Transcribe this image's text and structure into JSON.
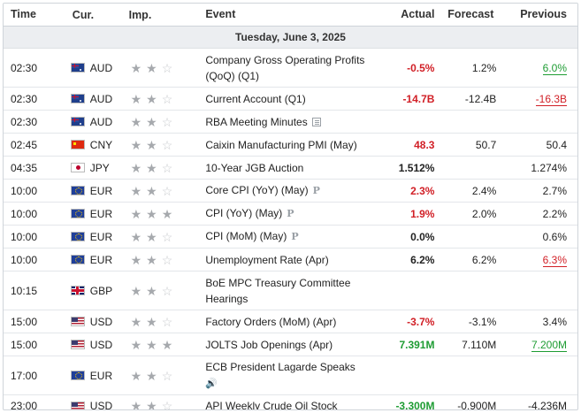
{
  "headers": {
    "time": "Time",
    "cur": "Cur.",
    "imp": "Imp.",
    "event": "Event",
    "actual": "Actual",
    "forecast": "Forecast",
    "previous": "Previous"
  },
  "date_label": "Tuesday, June 3, 2025",
  "icons": {
    "preliminary": "P",
    "speaker": "🔊"
  },
  "colors": {
    "negative": "#d11f26",
    "positive": "#1e9c33",
    "star_on": "#a6a9ad",
    "star_off": "#c8cacd"
  },
  "rows": [
    {
      "time": "02:30",
      "cur": "AUD",
      "imp": 2,
      "event": "Company Gross Operating Profits (QoQ) (Q1)",
      "icon": "",
      "actual": "-0.5%",
      "actual_color": "neg",
      "forecast": "1.2%",
      "previous": "6.0%",
      "prev_color": "pos",
      "prev_und": true,
      "h": 44
    },
    {
      "time": "02:30",
      "cur": "AUD",
      "imp": 2,
      "event": "Current Account (Q1)",
      "icon": "",
      "actual": "-14.7B",
      "actual_color": "neg",
      "forecast": "-12.4B",
      "previous": "-16.3B",
      "prev_color": "neg",
      "prev_und": true,
      "h": 26
    },
    {
      "time": "02:30",
      "cur": "AUD",
      "imp": 2,
      "event": "RBA Meeting Minutes",
      "icon": "doc",
      "actual": "",
      "actual_color": "blk",
      "forecast": "",
      "previous": "",
      "prev_color": "blk",
      "prev_und": false,
      "h": 26
    },
    {
      "time": "02:45",
      "cur": "CNY",
      "imp": 2,
      "event": "Caixin Manufacturing PMI (May)",
      "icon": "",
      "actual": "48.3",
      "actual_color": "neg",
      "forecast": "50.7",
      "previous": "50.4",
      "prev_color": "blk",
      "prev_und": false,
      "h": 26
    },
    {
      "time": "04:35",
      "cur": "JPY",
      "imp": 2,
      "event": "10-Year JGB Auction",
      "icon": "",
      "actual": "1.512%",
      "actual_color": "blk",
      "forecast": "",
      "previous": "1.274%",
      "prev_color": "blk",
      "prev_und": false,
      "h": 26
    },
    {
      "time": "10:00",
      "cur": "EUR",
      "imp": 2,
      "event": "Core CPI (YoY) (May)",
      "icon": "p",
      "actual": "2.3%",
      "actual_color": "neg",
      "forecast": "2.4%",
      "previous": "2.7%",
      "prev_color": "blk",
      "prev_und": false,
      "h": 26
    },
    {
      "time": "10:00",
      "cur": "EUR",
      "imp": 3,
      "event": "CPI (YoY) (May)",
      "icon": "p",
      "actual": "1.9%",
      "actual_color": "neg",
      "forecast": "2.0%",
      "previous": "2.2%",
      "prev_color": "blk",
      "prev_und": false,
      "h": 26
    },
    {
      "time": "10:00",
      "cur": "EUR",
      "imp": 2,
      "event": "CPI (MoM) (May)",
      "icon": "p",
      "actual": "0.0%",
      "actual_color": "blk",
      "forecast": "",
      "previous": "0.6%",
      "prev_color": "blk",
      "prev_und": false,
      "h": 26
    },
    {
      "time": "10:00",
      "cur": "EUR",
      "imp": 2,
      "event": "Unemployment Rate (Apr)",
      "icon": "",
      "actual": "6.2%",
      "actual_color": "blk",
      "forecast": "6.2%",
      "previous": "6.3%",
      "prev_color": "neg",
      "prev_und": true,
      "h": 26
    },
    {
      "time": "10:15",
      "cur": "GBP",
      "imp": 2,
      "event": "BoE MPC Treasury Committee Hearings",
      "icon": "",
      "actual": "",
      "actual_color": "blk",
      "forecast": "",
      "previous": "",
      "prev_color": "blk",
      "prev_und": false,
      "h": 44
    },
    {
      "time": "15:00",
      "cur": "USD",
      "imp": 2,
      "event": "Factory Orders (MoM) (Apr)",
      "icon": "",
      "actual": "-3.7%",
      "actual_color": "neg",
      "forecast": "-3.1%",
      "previous": "3.4%",
      "prev_color": "blk",
      "prev_und": false,
      "h": 26
    },
    {
      "time": "15:00",
      "cur": "USD",
      "imp": 3,
      "event": "JOLTS Job Openings (Apr)",
      "icon": "",
      "actual": "7.391M",
      "actual_color": "pos",
      "forecast": "7.110M",
      "previous": "7.200M",
      "prev_color": "pos",
      "prev_und": true,
      "h": 26
    },
    {
      "time": "17:00",
      "cur": "EUR",
      "imp": 2,
      "event": "ECB President Lagarde Speaks",
      "icon": "spk",
      "actual": "",
      "actual_color": "blk",
      "forecast": "",
      "previous": "",
      "prev_color": "blk",
      "prev_und": false,
      "h": 44
    },
    {
      "time": "23:00",
      "cur": "USD",
      "imp": 2,
      "event": "API Weekly Crude Oil Stock",
      "icon": "",
      "actual": "-3.300M",
      "actual_color": "pos",
      "forecast": "-0.900M",
      "previous": "-4.236M",
      "prev_color": "blk",
      "prev_und": false,
      "h": 24
    }
  ]
}
